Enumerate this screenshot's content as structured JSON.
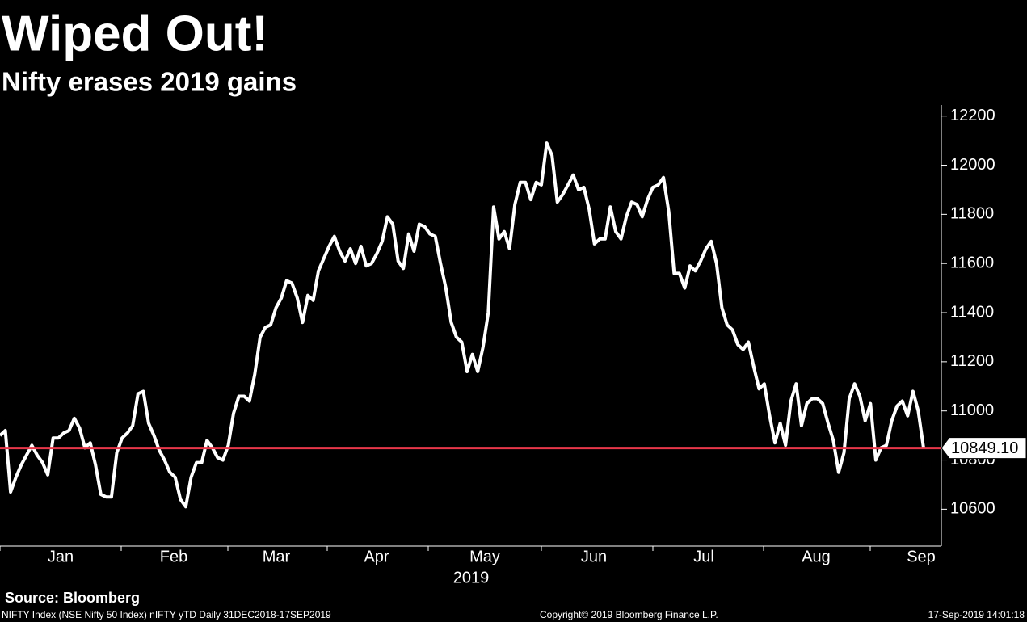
{
  "chart_data": {
    "type": "line",
    "title": "Wiped Out!",
    "subtitle": "Nifty erases 2019 gains",
    "color": "#ffffff",
    "values": [
      10900,
      10920,
      10670,
      10730,
      10780,
      10820,
      10860,
      10820,
      10790,
      10740,
      10890,
      10890,
      10910,
      10920,
      10970,
      10930,
      10850,
      10870,
      10780,
      10660,
      10650,
      10650,
      10830,
      10890,
      10910,
      10940,
      11070,
      11080,
      10950,
      10900,
      10840,
      10800,
      10750,
      10730,
      10640,
      10610,
      10730,
      10790,
      10790,
      10880,
      10850,
      10810,
      10800,
      10860,
      10990,
      11060,
      11060,
      11040,
      11150,
      11300,
      11340,
      11350,
      11420,
      11460,
      11530,
      11520,
      11460,
      11360,
      11470,
      11450,
      11570,
      11620,
      11670,
      11710,
      11650,
      11610,
      11660,
      11600,
      11670,
      11590,
      11600,
      11640,
      11690,
      11790,
      11760,
      11610,
      11580,
      11720,
      11650,
      11760,
      11750,
      11720,
      11710,
      11600,
      11500,
      11360,
      11300,
      11280,
      11160,
      11230,
      11160,
      11260,
      11400,
      11830,
      11700,
      11730,
      11660,
      11840,
      11930,
      11930,
      11860,
      11930,
      11920,
      12090,
      12040,
      11850,
      11880,
      11920,
      11960,
      11900,
      11910,
      11820,
      11680,
      11700,
      11700,
      11830,
      11730,
      11700,
      11790,
      11850,
      11840,
      11790,
      11860,
      11910,
      11920,
      11950,
      11810,
      11560,
      11560,
      11500,
      11590,
      11570,
      11610,
      11660,
      11690,
      11600,
      11420,
      11350,
      11330,
      11270,
      11250,
      11280,
      11180,
      11090,
      11110,
      10980,
      10870,
      10950,
      10860,
      11040,
      11110,
      10940,
      11030,
      11050,
      11050,
      11030,
      10950,
      10880,
      10750,
      10830,
      11050,
      11110,
      11060,
      10960,
      11030,
      10800,
      10850,
      10860,
      10960,
      11020,
      11040,
      10980,
      11080,
      11000,
      10849.1
    ],
    "ylim": [
      10450,
      12245
    ],
    "yticks": [
      10600,
      10800,
      11000,
      11200,
      11400,
      11600,
      11800,
      12000,
      12200
    ],
    "months": [
      "Jan",
      "Feb",
      "Mar",
      "Apr",
      "May",
      "Jun",
      "Jul",
      "Aug",
      "Sep"
    ],
    "year_label": "2019",
    "reference_line": {
      "value": 10849.1,
      "label": "10849.10",
      "color": "#e8374a"
    },
    "source": "Source: Bloomberg",
    "footnote": "NIFTY Index (NSE Nifty 50 Index) nIFTY yTD  Daily 31DEC2018-17SEP2019",
    "copyright": "Copyright© 2019 Bloomberg Finance L.P.",
    "timestamp": "17-Sep-2019 14:01:18"
  }
}
